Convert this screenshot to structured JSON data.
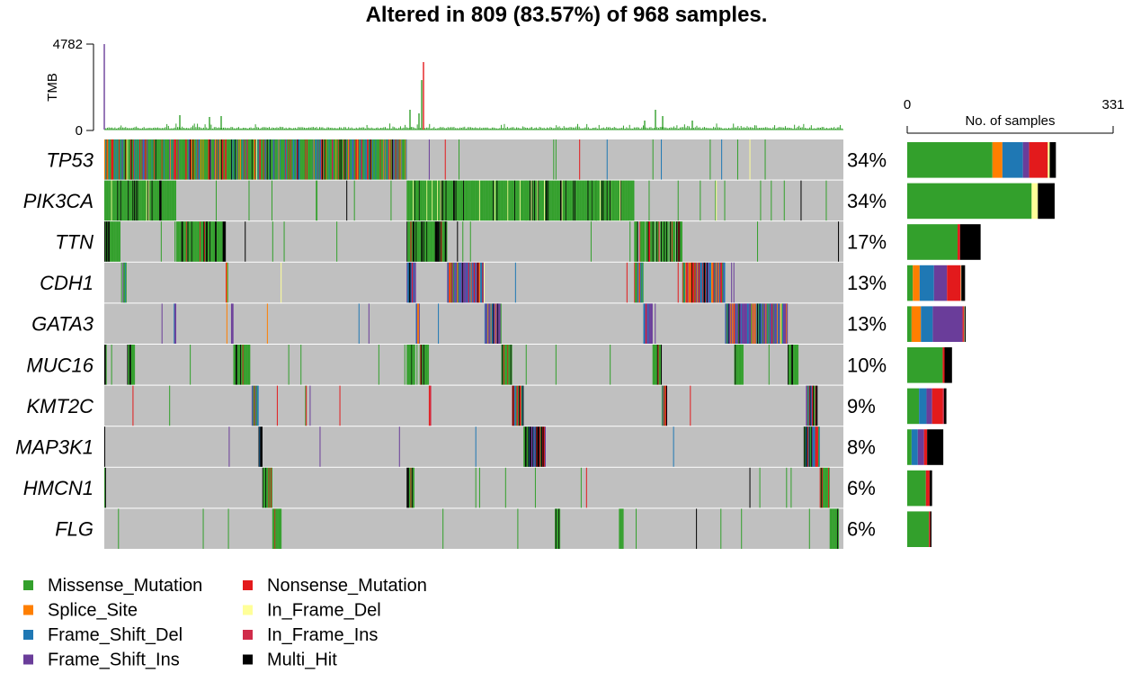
{
  "chart_data": {
    "type": "heatmap",
    "subtype": "oncoplot",
    "title": "Altered in 809 (83.57%) of 968 samples.",
    "n_samples": 968,
    "n_altered": 809,
    "tmb_axis": {
      "label": "TMB",
      "ylim": [
        0,
        4782
      ],
      "ticks": [
        "4782",
        "0"
      ]
    },
    "side_axis": {
      "label": "No. of samples",
      "xlim": [
        0,
        331
      ],
      "ticks": [
        "0",
        "331"
      ]
    },
    "colors": {
      "Missense_Mutation": "#33a02c",
      "Splice_Site": "#ff7f00",
      "Frame_Shift_Del": "#1f78b4",
      "Frame_Shift_Ins": "#6a3d9a",
      "Nonsense_Mutation": "#e31a1c",
      "In_Frame_Del": "#ffff99",
      "In_Frame_Ins": "#d02c4a",
      "Multi_Hit": "#000000",
      "background": "#c0c0c0"
    },
    "genes": [
      {
        "name": "TP53",
        "pct": "34%",
        "counts": {
          "Missense_Mutation": 137,
          "Splice_Site": 16,
          "Frame_Shift_Del": 33,
          "Frame_Shift_Ins": 10,
          "Nonsense_Mutation": 30,
          "In_Frame_Del": 3,
          "In_Frame_Ins": 0,
          "Multi_Hit": 10
        }
      },
      {
        "name": "PIK3CA",
        "pct": "34%",
        "counts": {
          "Missense_Mutation": 200,
          "Splice_Site": 0,
          "Frame_Shift_Del": 0,
          "Frame_Shift_Ins": 0,
          "Nonsense_Mutation": 0,
          "In_Frame_Del": 10,
          "In_Frame_Ins": 0,
          "Multi_Hit": 27
        }
      },
      {
        "name": "TTN",
        "pct": "17%",
        "counts": {
          "Missense_Mutation": 81,
          "Splice_Site": 0,
          "Frame_Shift_Del": 0,
          "Frame_Shift_Ins": 0,
          "Nonsense_Mutation": 4,
          "In_Frame_Del": 0,
          "In_Frame_Ins": 0,
          "Multi_Hit": 33
        }
      },
      {
        "name": "CDH1",
        "pct": "13%",
        "counts": {
          "Missense_Mutation": 9,
          "Splice_Site": 11,
          "Frame_Shift_Del": 23,
          "Frame_Shift_Ins": 21,
          "Nonsense_Mutation": 22,
          "In_Frame_Del": 1,
          "In_Frame_Ins": 0,
          "Multi_Hit": 6
        }
      },
      {
        "name": "GATA3",
        "pct": "13%",
        "counts": {
          "Missense_Mutation": 7,
          "Splice_Site": 15,
          "Frame_Shift_Del": 19,
          "Frame_Shift_Ins": 48,
          "Nonsense_Mutation": 2,
          "In_Frame_Del": 1,
          "In_Frame_Ins": 0,
          "Multi_Hit": 2
        }
      },
      {
        "name": "MUC16",
        "pct": "10%",
        "counts": {
          "Missense_Mutation": 57,
          "Splice_Site": 0,
          "Frame_Shift_Del": 0,
          "Frame_Shift_Ins": 0,
          "Nonsense_Mutation": 3,
          "In_Frame_Del": 0,
          "In_Frame_Ins": 0,
          "Multi_Hit": 12
        }
      },
      {
        "name": "KMT2C",
        "pct": "9%",
        "counts": {
          "Missense_Mutation": 19,
          "Splice_Site": 0,
          "Frame_Shift_Del": 12,
          "Frame_Shift_Ins": 9,
          "Nonsense_Mutation": 17,
          "In_Frame_Del": 0,
          "In_Frame_Ins": 2,
          "Multi_Hit": 4
        }
      },
      {
        "name": "MAP3K1",
        "pct": "8%",
        "counts": {
          "Missense_Mutation": 7,
          "Splice_Site": 0,
          "Frame_Shift_Del": 10,
          "Frame_Shift_Ins": 10,
          "Nonsense_Mutation": 5,
          "In_Frame_Del": 0,
          "In_Frame_Ins": 0,
          "Multi_Hit": 26
        }
      },
      {
        "name": "HMCN1",
        "pct": "6%",
        "counts": {
          "Missense_Mutation": 30,
          "Splice_Site": 0,
          "Frame_Shift_Del": 0,
          "Frame_Shift_Ins": 0,
          "Nonsense_Mutation": 6,
          "In_Frame_Del": 0,
          "In_Frame_Ins": 0,
          "Multi_Hit": 4
        }
      },
      {
        "name": "FLG",
        "pct": "6%",
        "counts": {
          "Missense_Mutation": 35,
          "Splice_Site": 0,
          "Frame_Shift_Del": 0,
          "Frame_Shift_Ins": 0,
          "Nonsense_Mutation": 2,
          "In_Frame_Del": 0,
          "In_Frame_Ins": 0,
          "Multi_Hit": 2
        }
      }
    ],
    "legend": [
      "Missense_Mutation",
      "Splice_Site",
      "Frame_Shift_Del",
      "Frame_Shift_Ins",
      "Nonsense_Mutation",
      "In_Frame_Del",
      "In_Frame_Ins",
      "Multi_Hit"
    ]
  }
}
